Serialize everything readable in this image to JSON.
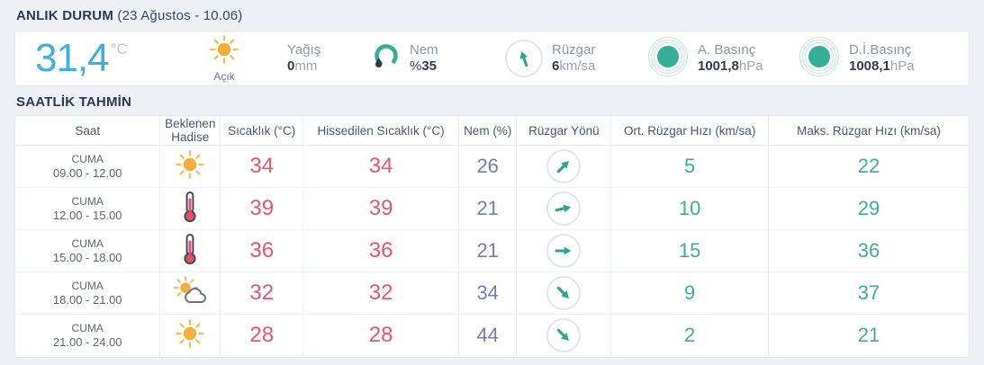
{
  "header": {
    "title": "ANLIK DURUM",
    "date": "(23 Ağustos - 10.06)"
  },
  "current": {
    "temp": "31,4",
    "temp_unit": "°C",
    "condition": "Açık",
    "condition_icon": "sun",
    "yagis": {
      "label": "Yağış",
      "value": "0",
      "unit": "mm"
    },
    "nem": {
      "label": "Nem",
      "prefix": "%",
      "value": "35",
      "icon": "humidity"
    },
    "ruzgar": {
      "label": "Rüzgar",
      "value": "6",
      "unit": "km/sa",
      "icon": "wind-arrow",
      "dir_deg": -20
    },
    "basinc": {
      "label": "A. Basınç",
      "value": "1001,8",
      "unit": "hPa",
      "icon": "pressure"
    },
    "di_basinc": {
      "label": "D.İ.Basınç",
      "value": "1008,1",
      "unit": "hPa",
      "icon": "pressure"
    }
  },
  "forecast": {
    "title": "SAATLİK TAHMİN",
    "columns": [
      "Saat",
      "Beklenen Hadise",
      "Sıcaklık (°C)",
      "Hissedilen Sıcaklık (°C)",
      "Nem (%)",
      "Rüzgar Yönü",
      "Ort. Rüzgar Hızı (km/sa)",
      "Maks. Rüzgar Hızı (km/sa)"
    ],
    "rows": [
      {
        "day": "CUMA",
        "time": "09.00 - 12.00",
        "icon": "sun",
        "temp": "34",
        "feels": "34",
        "humidity": "26",
        "wind_dir_deg": 45,
        "wind_avg": "5",
        "wind_max": "22"
      },
      {
        "day": "CUMA",
        "time": "12.00 - 15.00",
        "icon": "thermometer",
        "temp": "39",
        "feels": "39",
        "humidity": "21",
        "wind_dir_deg": 78,
        "wind_avg": "10",
        "wind_max": "29"
      },
      {
        "day": "CUMA",
        "time": "15.00 - 18.00",
        "icon": "thermometer",
        "temp": "36",
        "feels": "36",
        "humidity": "21",
        "wind_dir_deg": 90,
        "wind_avg": "15",
        "wind_max": "36"
      },
      {
        "day": "CUMA",
        "time": "18.00 - 21.00",
        "icon": "sun-cloud",
        "temp": "32",
        "feels": "32",
        "humidity": "34",
        "wind_dir_deg": 135,
        "wind_avg": "9",
        "wind_max": "37"
      },
      {
        "day": "CUMA",
        "time": "21.00 - 24.00",
        "icon": "sun",
        "temp": "28",
        "feels": "28",
        "humidity": "44",
        "wind_dir_deg": 135,
        "wind_avg": "2",
        "wind_max": "21"
      }
    ]
  },
  "colors": {
    "accent_teal": "#35ae96",
    "temp_blue": "#3fb0df",
    "temp_red": "#e8566f",
    "humidity_purple": "#767bb8",
    "dark_navy": "#333b54",
    "background": "#edf0f4"
  }
}
